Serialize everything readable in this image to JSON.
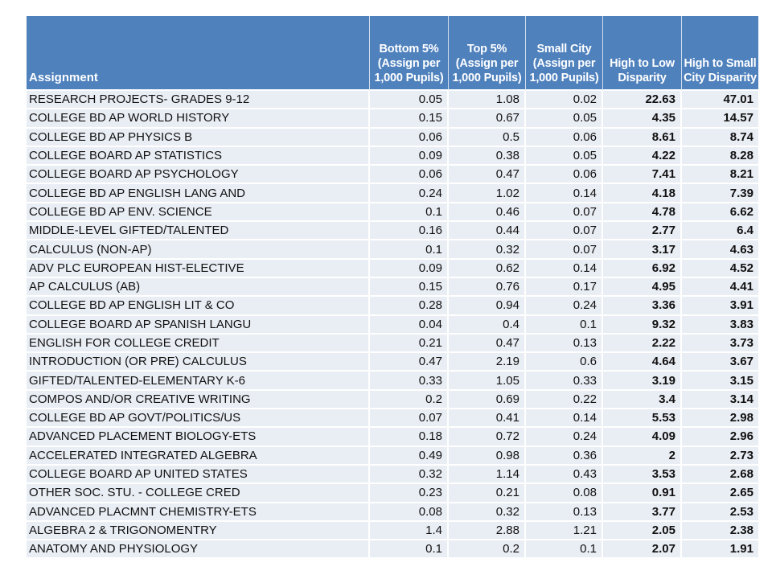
{
  "chart_data": {
    "type": "table",
    "title": "",
    "columns": [
      "Assignment",
      "Bottom 5% (Assign per 1,000 Pupils)",
      "Top 5% (Assign per 1,000 Pupils)",
      "Small City (Assign per 1,000 Pupils)",
      "High to Low Disparity",
      "High to Small City Disparity"
    ],
    "rows": [
      [
        "RESEARCH PROJECTS- GRADES 9-12",
        "0.05",
        "1.08",
        "0.02",
        "22.63",
        "47.01"
      ],
      [
        "COLLEGE BD AP WORLD HISTORY",
        "0.15",
        "0.67",
        "0.05",
        "4.35",
        "14.57"
      ],
      [
        "COLLEGE BD AP PHYSICS B",
        "0.06",
        "0.5",
        "0.06",
        "8.61",
        "8.74"
      ],
      [
        "COLLEGE BOARD AP STATISTICS",
        "0.09",
        "0.38",
        "0.05",
        "4.22",
        "8.28"
      ],
      [
        "COLLEGE BOARD AP PSYCHOLOGY",
        "0.06",
        "0.47",
        "0.06",
        "7.41",
        "8.21"
      ],
      [
        "COLLEGE BD AP ENGLISH LANG AND",
        "0.24",
        "1.02",
        "0.14",
        "4.18",
        "7.39"
      ],
      [
        "COLLEGE BD AP ENV. SCIENCE",
        "0.1",
        "0.46",
        "0.07",
        "4.78",
        "6.62"
      ],
      [
        "MIDDLE-LEVEL GIFTED/TALENTED",
        "0.16",
        "0.44",
        "0.07",
        "2.77",
        "6.4"
      ],
      [
        "CALCULUS (NON-AP)",
        "0.1",
        "0.32",
        "0.07",
        "3.17",
        "4.63"
      ],
      [
        "ADV PLC EUROPEAN HIST-ELECTIVE",
        "0.09",
        "0.62",
        "0.14",
        "6.92",
        "4.52"
      ],
      [
        "AP CALCULUS (AB)",
        "0.15",
        "0.76",
        "0.17",
        "4.95",
        "4.41"
      ],
      [
        "COLLEGE BD AP ENGLISH LIT & CO",
        "0.28",
        "0.94",
        "0.24",
        "3.36",
        "3.91"
      ],
      [
        "COLLEGE BOARD AP SPANISH LANGU",
        "0.04",
        "0.4",
        "0.1",
        "9.32",
        "3.83"
      ],
      [
        "ENGLISH FOR COLLEGE CREDIT",
        "0.21",
        "0.47",
        "0.13",
        "2.22",
        "3.73"
      ],
      [
        "INTRODUCTION (OR PRE) CALCULUS",
        "0.47",
        "2.19",
        "0.6",
        "4.64",
        "3.67"
      ],
      [
        "GIFTED/TALENTED-ELEMENTARY K-6",
        "0.33",
        "1.05",
        "0.33",
        "3.19",
        "3.15"
      ],
      [
        "COMPOS AND/OR CREATIVE WRITING",
        "0.2",
        "0.69",
        "0.22",
        "3.4",
        "3.14"
      ],
      [
        "COLLEGE BD AP GOVT/POLITICS/US",
        "0.07",
        "0.41",
        "0.14",
        "5.53",
        "2.98"
      ],
      [
        "ADVANCED PLACEMENT BIOLOGY-ETS",
        "0.18",
        "0.72",
        "0.24",
        "4.09",
        "2.96"
      ],
      [
        "ACCELERATED INTEGRATED ALGEBRA",
        "0.49",
        "0.98",
        "0.36",
        "2",
        "2.73"
      ],
      [
        "COLLEGE BOARD AP UNITED STATES",
        "0.32",
        "1.14",
        "0.43",
        "3.53",
        "2.68"
      ],
      [
        "OTHER SOC. STU. - COLLEGE CRED",
        "0.23",
        "0.21",
        "0.08",
        "0.91",
        "2.65"
      ],
      [
        "ADVANCED PLACMNT CHEMISTRY-ETS",
        "0.08",
        "0.32",
        "0.13",
        "3.77",
        "2.53"
      ],
      [
        "ALGEBRA 2 & TRIGONOMENTRY",
        "1.4",
        "2.88",
        "1.21",
        "2.05",
        "2.38"
      ],
      [
        "ANATOMY AND PHYSIOLOGY",
        "0.1",
        "0.2",
        "0.1",
        "2.07",
        "1.91"
      ]
    ],
    "layout": {
      "header_bg": "#4F81BD",
      "header_text": "#FFFFFF",
      "row_bg": "#E9EDF4",
      "grid_color": "#FFFFFF",
      "body_text": "#111111",
      "bold_column_indexes": [
        4,
        5
      ],
      "numeric_columns_right_aligned": true,
      "grid": "on",
      "legend": "none"
    }
  }
}
